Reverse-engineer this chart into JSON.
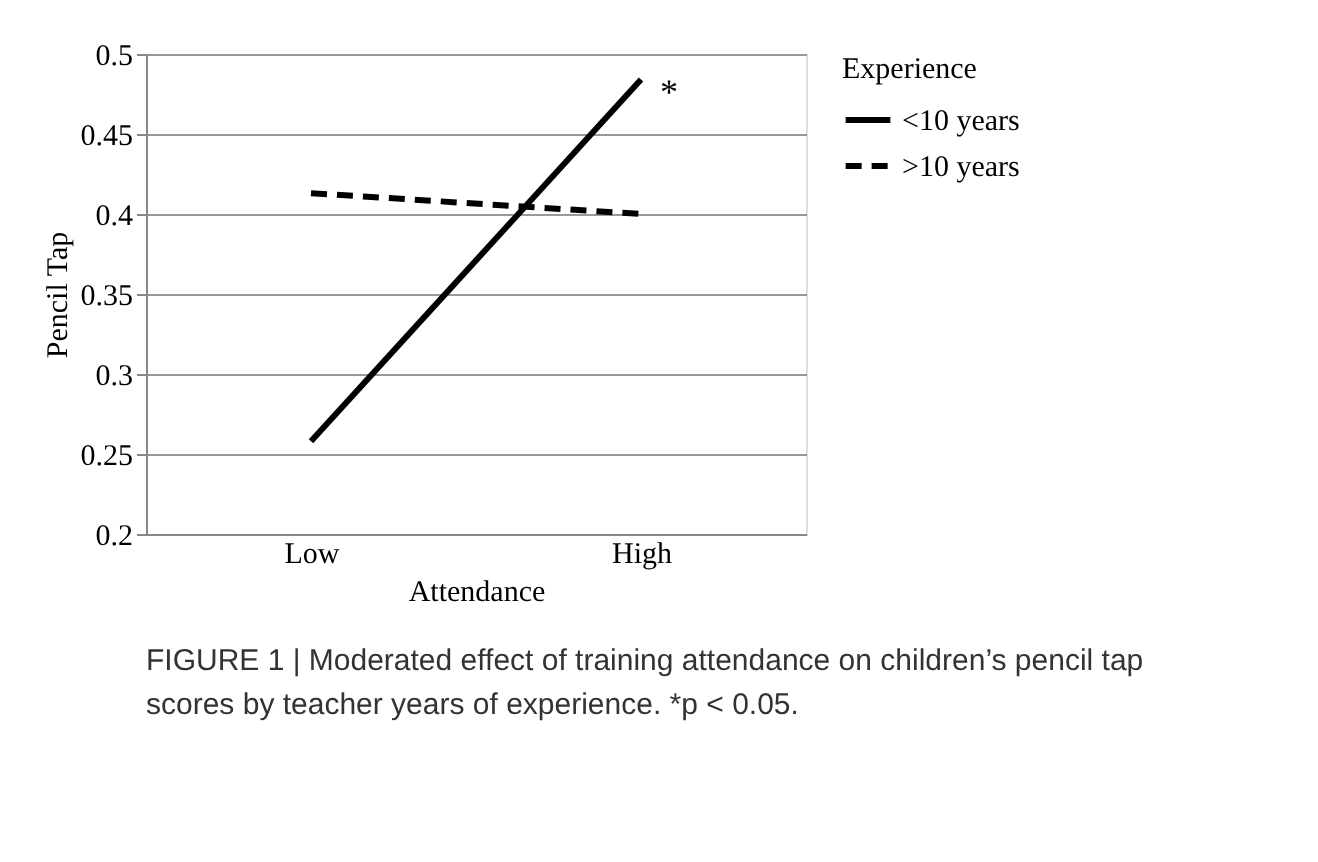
{
  "chart_data": {
    "type": "line",
    "categories": [
      "Low",
      "High"
    ],
    "series": [
      {
        "name": "<10 years",
        "color": "#000000",
        "values": [
          0.258,
          0.484
        ],
        "line_style": "solid"
      },
      {
        "name": ">10 years",
        "color": "#000000",
        "values": [
          0.413,
          0.4
        ],
        "line_style": "dashed"
      }
    ],
    "xlabel": "Attendance",
    "ylabel": "Pencil Tap",
    "legend_title": "Experience",
    "legend": "right",
    "ylim": [
      0.2,
      0.5
    ],
    "yticks": [
      0.2,
      0.25,
      0.3,
      0.35,
      0.4,
      0.45,
      0.5
    ],
    "grid": "y",
    "marker": "none",
    "annotations": [
      {
        "text": "*",
        "x": "High",
        "y": 0.48
      },
      "FIGURE 1 | Moderated effect of training attendance on children’s pencil tap scores by teacher years of experience. *p < 0.05."
    ]
  }
}
